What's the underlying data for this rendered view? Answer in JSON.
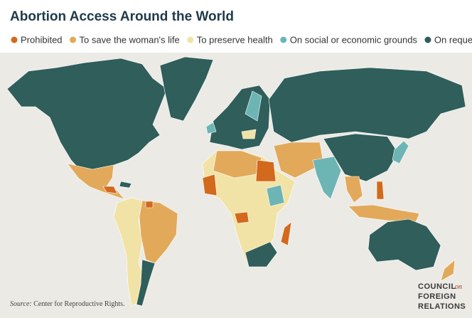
{
  "header": {
    "title": "Abortion Access Around the World"
  },
  "legend": {
    "items": [
      {
        "label": "Prohibited",
        "color": "#d2691c"
      },
      {
        "label": "To save the woman's life",
        "color": "#e2a95b"
      },
      {
        "label": "To preserve health",
        "color": "#f1e3a6"
      },
      {
        "label": "On social or economic grounds",
        "color": "#6db5b5"
      },
      {
        "label": "On request",
        "color": "#2f5e5b"
      }
    ]
  },
  "source": {
    "prefix": "Source:",
    "text": "Center for Reproductive Rights."
  },
  "logo": {
    "line1": "COUNCIL",
    "connector": "on",
    "line2": "FOREIGN",
    "line3": "RELATIONS"
  }
}
